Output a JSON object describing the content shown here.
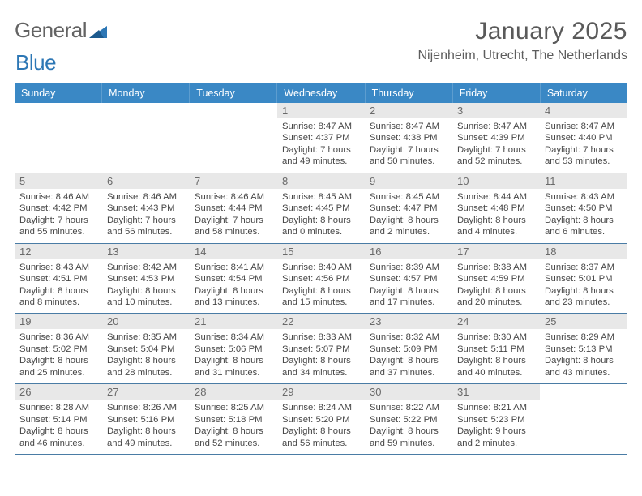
{
  "brand": {
    "word1": "General",
    "word2": "Blue"
  },
  "header": {
    "month_title": "January 2025",
    "location": "Nijenheim, Utrecht, The Netherlands"
  },
  "colors": {
    "header_bg": "#3a88c5",
    "header_text": "#ffffff",
    "date_bar_bg": "#e8e8e8",
    "date_text": "#6a6a6a",
    "body_text": "#474747",
    "rule": "#4a7ca5",
    "logo_gray": "#636363",
    "logo_blue": "#2d77b5"
  },
  "day_names": [
    "Sunday",
    "Monday",
    "Tuesday",
    "Wednesday",
    "Thursday",
    "Friday",
    "Saturday"
  ],
  "weeks": [
    [
      {
        "date": "",
        "lines": []
      },
      {
        "date": "",
        "lines": []
      },
      {
        "date": "",
        "lines": []
      },
      {
        "date": "1",
        "lines": [
          "Sunrise: 8:47 AM",
          "Sunset: 4:37 PM",
          "Daylight: 7 hours and 49 minutes."
        ]
      },
      {
        "date": "2",
        "lines": [
          "Sunrise: 8:47 AM",
          "Sunset: 4:38 PM",
          "Daylight: 7 hours and 50 minutes."
        ]
      },
      {
        "date": "3",
        "lines": [
          "Sunrise: 8:47 AM",
          "Sunset: 4:39 PM",
          "Daylight: 7 hours and 52 minutes."
        ]
      },
      {
        "date": "4",
        "lines": [
          "Sunrise: 8:47 AM",
          "Sunset: 4:40 PM",
          "Daylight: 7 hours and 53 minutes."
        ]
      }
    ],
    [
      {
        "date": "5",
        "lines": [
          "Sunrise: 8:46 AM",
          "Sunset: 4:42 PM",
          "Daylight: 7 hours and 55 minutes."
        ]
      },
      {
        "date": "6",
        "lines": [
          "Sunrise: 8:46 AM",
          "Sunset: 4:43 PM",
          "Daylight: 7 hours and 56 minutes."
        ]
      },
      {
        "date": "7",
        "lines": [
          "Sunrise: 8:46 AM",
          "Sunset: 4:44 PM",
          "Daylight: 7 hours and 58 minutes."
        ]
      },
      {
        "date": "8",
        "lines": [
          "Sunrise: 8:45 AM",
          "Sunset: 4:45 PM",
          "Daylight: 8 hours and 0 minutes."
        ]
      },
      {
        "date": "9",
        "lines": [
          "Sunrise: 8:45 AM",
          "Sunset: 4:47 PM",
          "Daylight: 8 hours and 2 minutes."
        ]
      },
      {
        "date": "10",
        "lines": [
          "Sunrise: 8:44 AM",
          "Sunset: 4:48 PM",
          "Daylight: 8 hours and 4 minutes."
        ]
      },
      {
        "date": "11",
        "lines": [
          "Sunrise: 8:43 AM",
          "Sunset: 4:50 PM",
          "Daylight: 8 hours and 6 minutes."
        ]
      }
    ],
    [
      {
        "date": "12",
        "lines": [
          "Sunrise: 8:43 AM",
          "Sunset: 4:51 PM",
          "Daylight: 8 hours and 8 minutes."
        ]
      },
      {
        "date": "13",
        "lines": [
          "Sunrise: 8:42 AM",
          "Sunset: 4:53 PM",
          "Daylight: 8 hours and 10 minutes."
        ]
      },
      {
        "date": "14",
        "lines": [
          "Sunrise: 8:41 AM",
          "Sunset: 4:54 PM",
          "Daylight: 8 hours and 13 minutes."
        ]
      },
      {
        "date": "15",
        "lines": [
          "Sunrise: 8:40 AM",
          "Sunset: 4:56 PM",
          "Daylight: 8 hours and 15 minutes."
        ]
      },
      {
        "date": "16",
        "lines": [
          "Sunrise: 8:39 AM",
          "Sunset: 4:57 PM",
          "Daylight: 8 hours and 17 minutes."
        ]
      },
      {
        "date": "17",
        "lines": [
          "Sunrise: 8:38 AM",
          "Sunset: 4:59 PM",
          "Daylight: 8 hours and 20 minutes."
        ]
      },
      {
        "date": "18",
        "lines": [
          "Sunrise: 8:37 AM",
          "Sunset: 5:01 PM",
          "Daylight: 8 hours and 23 minutes."
        ]
      }
    ],
    [
      {
        "date": "19",
        "lines": [
          "Sunrise: 8:36 AM",
          "Sunset: 5:02 PM",
          "Daylight: 8 hours and 25 minutes."
        ]
      },
      {
        "date": "20",
        "lines": [
          "Sunrise: 8:35 AM",
          "Sunset: 5:04 PM",
          "Daylight: 8 hours and 28 minutes."
        ]
      },
      {
        "date": "21",
        "lines": [
          "Sunrise: 8:34 AM",
          "Sunset: 5:06 PM",
          "Daylight: 8 hours and 31 minutes."
        ]
      },
      {
        "date": "22",
        "lines": [
          "Sunrise: 8:33 AM",
          "Sunset: 5:07 PM",
          "Daylight: 8 hours and 34 minutes."
        ]
      },
      {
        "date": "23",
        "lines": [
          "Sunrise: 8:32 AM",
          "Sunset: 5:09 PM",
          "Daylight: 8 hours and 37 minutes."
        ]
      },
      {
        "date": "24",
        "lines": [
          "Sunrise: 8:30 AM",
          "Sunset: 5:11 PM",
          "Daylight: 8 hours and 40 minutes."
        ]
      },
      {
        "date": "25",
        "lines": [
          "Sunrise: 8:29 AM",
          "Sunset: 5:13 PM",
          "Daylight: 8 hours and 43 minutes."
        ]
      }
    ],
    [
      {
        "date": "26",
        "lines": [
          "Sunrise: 8:28 AM",
          "Sunset: 5:14 PM",
          "Daylight: 8 hours and 46 minutes."
        ]
      },
      {
        "date": "27",
        "lines": [
          "Sunrise: 8:26 AM",
          "Sunset: 5:16 PM",
          "Daylight: 8 hours and 49 minutes."
        ]
      },
      {
        "date": "28",
        "lines": [
          "Sunrise: 8:25 AM",
          "Sunset: 5:18 PM",
          "Daylight: 8 hours and 52 minutes."
        ]
      },
      {
        "date": "29",
        "lines": [
          "Sunrise: 8:24 AM",
          "Sunset: 5:20 PM",
          "Daylight: 8 hours and 56 minutes."
        ]
      },
      {
        "date": "30",
        "lines": [
          "Sunrise: 8:22 AM",
          "Sunset: 5:22 PM",
          "Daylight: 8 hours and 59 minutes."
        ]
      },
      {
        "date": "31",
        "lines": [
          "Sunrise: 8:21 AM",
          "Sunset: 5:23 PM",
          "Daylight: 9 hours and 2 minutes."
        ]
      },
      {
        "date": "",
        "lines": []
      }
    ]
  ]
}
